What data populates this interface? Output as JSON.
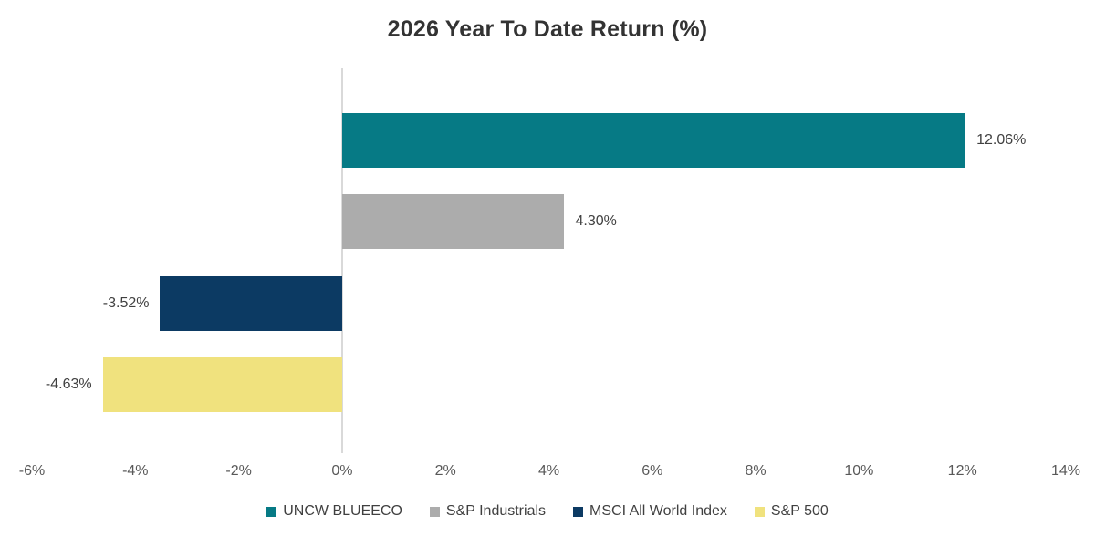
{
  "chart_data": {
    "type": "bar",
    "orientation": "horizontal",
    "title": "2026 Year To Date Return (%)",
    "categories": [
      "UNCW BLUEECO",
      "S&P Industrials",
      "MSCI All World Index",
      "S&P 500"
    ],
    "values": [
      12.06,
      4.3,
      -3.52,
      -4.63
    ],
    "value_labels": [
      "12.06%",
      "4.30%",
      "-3.52%",
      "-4.63%"
    ],
    "colors": [
      "#067A85",
      "#ACACAC",
      "#0C3A63",
      "#F0E27E"
    ],
    "xlim": [
      -6,
      14
    ],
    "x_ticks": [
      -6,
      -4,
      -2,
      0,
      2,
      4,
      6,
      8,
      10,
      12,
      14
    ],
    "x_tick_labels": [
      "-6%",
      "-4%",
      "-2%",
      "0%",
      "2%",
      "4%",
      "6%",
      "8%",
      "10%",
      "12%",
      "14%"
    ],
    "grid": false,
    "axis_line_color": "#D9D9D9",
    "legend_position": "bottom",
    "legend": [
      {
        "label": "UNCW BLUEECO",
        "color": "#067A85"
      },
      {
        "label": "S&P Industrials",
        "color": "#ACACAC"
      },
      {
        "label": "MSCI All World Index",
        "color": "#0C3A63"
      },
      {
        "label": "S&P 500",
        "color": "#F0E27E"
      }
    ]
  }
}
